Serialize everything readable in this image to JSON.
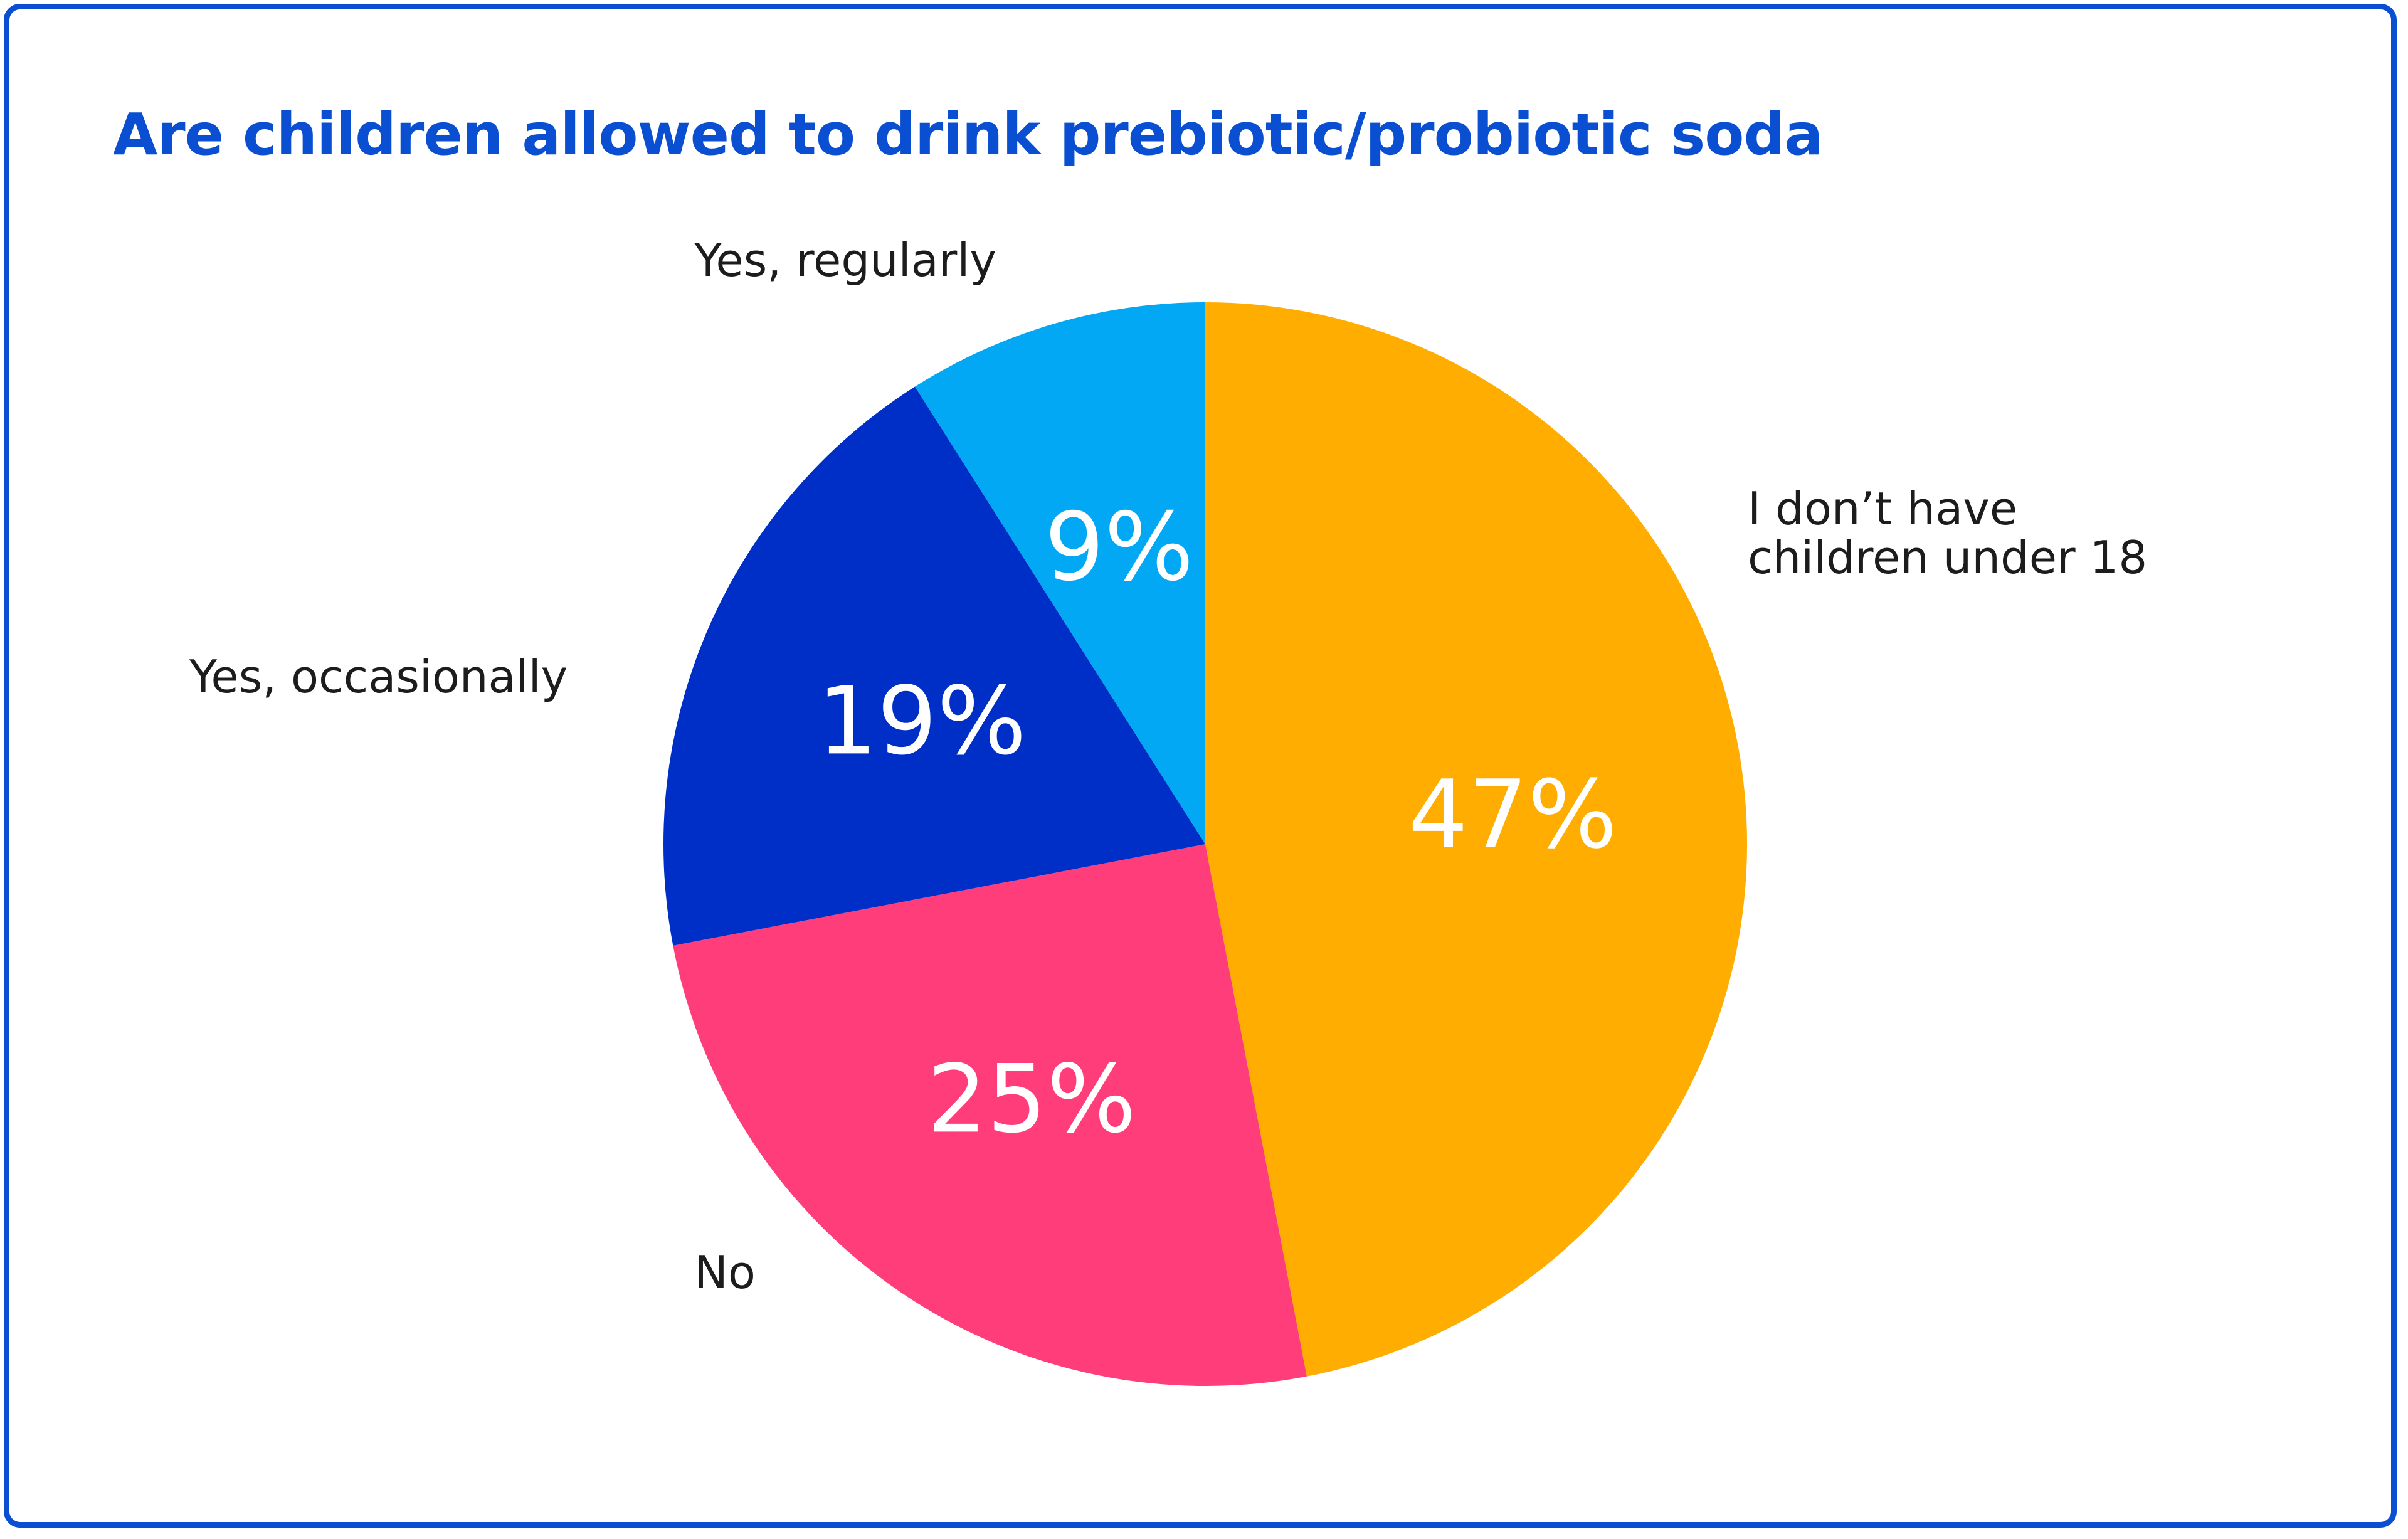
{
  "chart_data": {
    "type": "pie",
    "title": "Are children allowed to drink prebiotic/probiotic soda",
    "unit": "%",
    "start": "12 o'clock",
    "direction": "clockwise",
    "slices": [
      {
        "label": "I don’t have children under 18",
        "label_lines": [
          "I don’t have",
          "children under 18"
        ],
        "value": 47,
        "value_label": "47%",
        "color": "#ffad00"
      },
      {
        "label": "No",
        "label_lines": [
          "No"
        ],
        "value": 25,
        "value_label": "25%",
        "color": "#ff3d7a"
      },
      {
        "label": "Yes, occasionally",
        "label_lines": [
          "Yes, occasionally"
        ],
        "value": 19,
        "value_label": "19%",
        "color": "#002fc7"
      },
      {
        "label": "Yes, regularly",
        "label_lines": [
          "Yes, regularly"
        ],
        "value": 9,
        "value_label": "9%",
        "color": "#03a8f4"
      }
    ]
  },
  "colors": {
    "title": "#0a4fd1",
    "frame": "#0a4fd1",
    "value_text": "#ffffff",
    "label_text": "#1c1c1c"
  }
}
